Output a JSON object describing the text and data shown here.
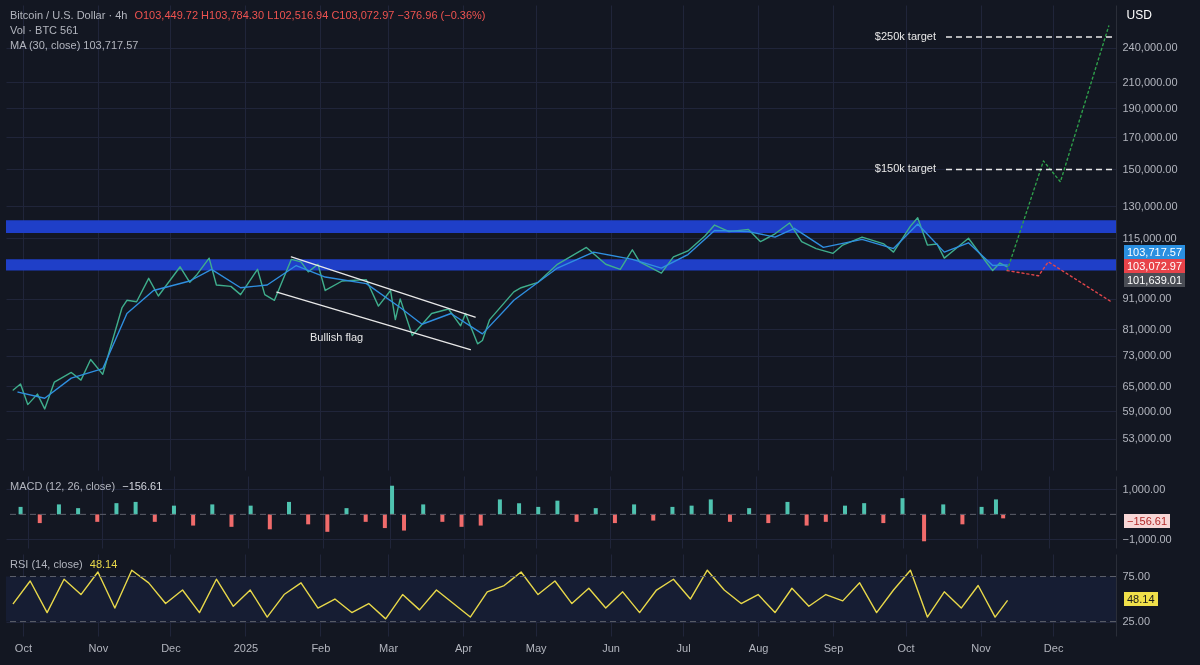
{
  "chart_data": [
    {
      "type": "line",
      "title": "Bitcoin / U.S. Dollar · 4h",
      "subtitle": "O103,449.72 H103,784.30 L102,516.94 C103,072.97 −376.96 (−0.36%)",
      "ylabel": "USD",
      "log": "y",
      "grid": true,
      "tick_labels": "y",
      "xlim": [
        "2024-09-24",
        "2025-12-27"
      ],
      "xticks": [
        {
          "value": "2024-10-01",
          "label": null
        },
        {
          "value": "2024-11-01",
          "label": null
        },
        {
          "value": "2024-12-01",
          "label": null
        },
        {
          "value": "2025-01-01",
          "label": null
        },
        {
          "value": "2025-02-01",
          "label": null
        },
        {
          "value": "2025-03-01",
          "label": null
        },
        {
          "value": "2025-04-01",
          "label": null
        },
        {
          "value": "2025-05-01",
          "label": null
        },
        {
          "value": "2025-06-01",
          "label": null
        },
        {
          "value": "2025-07-01",
          "label": null
        },
        {
          "value": "2025-08-01",
          "label": null
        },
        {
          "value": "2025-09-01",
          "label": null
        },
        {
          "value": "2025-10-01",
          "label": null
        },
        {
          "value": "2025-11-01",
          "label": null
        },
        {
          "value": "2025-12-01",
          "label": null
        }
      ],
      "ylim": [
        47000,
        283000
      ],
      "yticks": [
        {
          "value": 53000,
          "label": "53,000.00"
        },
        {
          "value": 59000,
          "label": "59,000.00"
        },
        {
          "value": 65000,
          "label": "65,000.00"
        },
        {
          "value": 73000,
          "label": "73,000.00"
        },
        {
          "value": 81000,
          "label": "81,000.00"
        },
        {
          "value": 91000,
          "label": "91,000.00"
        },
        {
          "value": 115000,
          "label": "115,000.00"
        },
        {
          "value": 130000,
          "label": "130,000.00"
        },
        {
          "value": 150000,
          "label": "150,000.00"
        },
        {
          "value": 170000,
          "label": "170,000.00"
        },
        {
          "value": 190000,
          "label": "190,000.00"
        },
        {
          "value": 210000,
          "label": "210,000.00"
        },
        {
          "value": 240000,
          "label": "240,000.00"
        }
      ],
      "bands": [
        {
          "axis": "y",
          "from": 101500,
          "to": 106000,
          "color": "#1f3fc8"
        },
        {
          "axis": "y",
          "from": 117300,
          "to": 123300,
          "color": "#1f3fc8"
        }
      ],
      "series": [
        {
          "color": "#3fae8c",
          "x": [
            "2024-09-27",
            "2024-09-30",
            "2024-10-03",
            "2024-10-07",
            "2024-10-10",
            "2024-10-14",
            "2024-10-21",
            "2024-10-25",
            "2024-10-29",
            "2024-11-03",
            "2024-11-06",
            "2024-11-11",
            "2024-11-13",
            "2024-11-17",
            "2024-11-22",
            "2024-11-26",
            "2024-12-05",
            "2024-12-09",
            "2024-12-12",
            "2024-12-17",
            "2024-12-20",
            "2024-12-26",
            "2024-12-30",
            "2025-01-06",
            "2025-01-09",
            "2025-01-13",
            "2025-01-20",
            "2025-01-24",
            "2025-01-27",
            "2025-01-31",
            "2025-02-03",
            "2025-02-10",
            "2025-02-20",
            "2025-02-25",
            "2025-03-02",
            "2025-03-04",
            "2025-03-06",
            "2025-03-11",
            "2025-03-19",
            "2025-03-26",
            "2025-03-31",
            "2025-04-02",
            "2025-04-07",
            "2025-04-09",
            "2025-04-12",
            "2025-04-22",
            "2025-04-25",
            "2025-05-02",
            "2025-05-10",
            "2025-05-22",
            "2025-05-30",
            "2025-06-05",
            "2025-06-10",
            "2025-06-13",
            "2025-06-22",
            "2025-06-27",
            "2025-07-03",
            "2025-07-10",
            "2025-07-14",
            "2025-07-20",
            "2025-07-28",
            "2025-08-02",
            "2025-08-08",
            "2025-08-14",
            "2025-08-19",
            "2025-08-25",
            "2025-09-01",
            "2025-09-05",
            "2025-09-13",
            "2025-09-22",
            "2025-09-26",
            "2025-10-03",
            "2025-10-06",
            "2025-10-10",
            "2025-10-14",
            "2025-10-17",
            "2025-10-27",
            "2025-11-04",
            "2025-11-06",
            "2025-11-09",
            "2025-11-12"
          ],
          "values": [
            64000,
            65500,
            60500,
            63000,
            59500,
            66000,
            68500,
            66500,
            72000,
            68000,
            75000,
            88000,
            90500,
            90000,
            98500,
            92000,
            103000,
            97000,
            100000,
            106500,
            96000,
            95500,
            92500,
            102000,
            92500,
            90500,
            106000,
            105000,
            101000,
            104000,
            94000,
            97500,
            98000,
            88500,
            94000,
            84000,
            91000,
            79000,
            86000,
            87500,
            82000,
            86000,
            76500,
            77500,
            84000,
            93500,
            95000,
            97000,
            104000,
            111000,
            104000,
            102000,
            110000,
            105000,
            100500,
            107000,
            109500,
            116000,
            121000,
            118000,
            119000,
            113500,
            117000,
            122000,
            113500,
            110500,
            108500,
            112000,
            115500,
            112500,
            109000,
            120500,
            124500,
            112000,
            112500,
            106500,
            115000,
            104000,
            101500,
            104500,
            103000
          ]
        },
        {
          "color": "#2f8fe0",
          "x": [
            "2024-09-29",
            "2024-10-10",
            "2024-10-21",
            "2024-11-03",
            "2024-11-13",
            "2024-11-24",
            "2024-12-09",
            "2024-12-18",
            "2024-12-30",
            "2025-01-10",
            "2025-01-22",
            "2025-02-03",
            "2025-02-20",
            "2025-03-06",
            "2025-03-15",
            "2025-03-27",
            "2025-04-09",
            "2025-04-22",
            "2025-05-10",
            "2025-05-25",
            "2025-06-10",
            "2025-06-22",
            "2025-07-03",
            "2025-07-14",
            "2025-07-28",
            "2025-08-08",
            "2025-08-16",
            "2025-08-28",
            "2025-09-13",
            "2025-09-26",
            "2025-10-06",
            "2025-10-17",
            "2025-10-27",
            "2025-11-06",
            "2025-11-12"
          ],
          "values": [
            63500,
            62000,
            67000,
            69500,
            86000,
            94000,
            97500,
            102000,
            95000,
            96000,
            103500,
            99000,
            96500,
            88000,
            82500,
            86000,
            79500,
            90500,
            102500,
            109000,
            106000,
            102500,
            108000,
            118500,
            118000,
            115500,
            119500,
            111000,
            114500,
            110500,
            121500,
            109000,
            113000,
            103500,
            103700
          ]
        },
        {
          "color": "#e8e8e8",
          "x": [
            "2025-01-20",
            "2025-04-06"
          ],
          "values": [
            107000,
            84800
          ]
        },
        {
          "color": "#e8e8e8",
          "x": [
            "2025-01-14",
            "2025-04-04"
          ],
          "values": [
            93400,
            74800
          ]
        },
        {
          "color": "#2e9e4a",
          "line_style": "dotted",
          "x": [
            "2025-11-12",
            "2025-11-27",
            "2025-12-04",
            "2025-12-24"
          ],
          "values": [
            101500,
            155000,
            143000,
            261000
          ]
        },
        {
          "color": "#e0454a",
          "line_style": "dotted",
          "x": [
            "2025-11-12",
            "2025-11-25",
            "2025-11-29",
            "2025-12-25"
          ],
          "values": [
            101500,
            99500,
            105000,
            90000
          ]
        }
      ],
      "ref_lines": [
        {
          "axis": "y",
          "value": 150000,
          "label": "$150k target",
          "line_style": "dashed",
          "color": "#e8e8e8"
        },
        {
          "axis": "y",
          "value": 250000,
          "label": "$250k target",
          "line_style": "dashed",
          "color": "#e8e8e8"
        }
      ],
      "annotations": [
        "Vol · BTC 561",
        "MA (30, close) 103,717.57",
        "Bullish flag",
        "103,717.57",
        "103,072.97",
        "101,639.01"
      ]
    },
    {
      "type": "bar",
      "title": "MACD (12, 26, close)",
      "subtitle": "−156.61",
      "grid": true,
      "tick_labels": "y",
      "xlim": [
        "2024-09-24",
        "2025-12-27"
      ],
      "xticks": [
        {
          "value": "2024-10-01",
          "label": null
        },
        {
          "value": "2024-11-01",
          "label": null
        },
        {
          "value": "2024-12-01",
          "label": null
        },
        {
          "value": "2025-01-01",
          "label": null
        },
        {
          "value": "2025-02-01",
          "label": null
        },
        {
          "value": "2025-03-01",
          "label": null
        },
        {
          "value": "2025-04-01",
          "label": null
        },
        {
          "value": "2025-05-01",
          "label": null
        },
        {
          "value": "2025-06-01",
          "label": null
        },
        {
          "value": "2025-07-01",
          "label": null
        },
        {
          "value": "2025-08-01",
          "label": null
        },
        {
          "value": "2025-09-01",
          "label": null
        },
        {
          "value": "2025-10-01",
          "label": null
        },
        {
          "value": "2025-11-01",
          "label": null
        },
        {
          "value": "2025-12-01",
          "label": null
        }
      ],
      "ylim": [
        -1350,
        1540
      ],
      "yticks": [
        {
          "value": -1000,
          "label": "−1,000.00"
        },
        {
          "value": 1000,
          "label": "1,000.00"
        }
      ],
      "x": [
        "2024-09-28",
        "2024-10-06",
        "2024-10-14",
        "2024-10-22",
        "2024-10-30",
        "2024-11-07",
        "2024-11-15",
        "2024-11-23",
        "2024-12-01",
        "2024-12-09",
        "2024-12-17",
        "2024-12-25",
        "2025-01-02",
        "2025-01-10",
        "2025-01-18",
        "2025-01-26",
        "2025-02-03",
        "2025-02-11",
        "2025-02-19",
        "2025-02-27",
        "2025-03-02",
        "2025-03-07",
        "2025-03-15",
        "2025-03-23",
        "2025-03-31",
        "2025-04-08",
        "2025-04-16",
        "2025-04-24",
        "2025-05-02",
        "2025-05-10",
        "2025-05-18",
        "2025-05-26",
        "2025-06-03",
        "2025-06-11",
        "2025-06-19",
        "2025-06-27",
        "2025-07-05",
        "2025-07-13",
        "2025-07-21",
        "2025-07-29",
        "2025-08-06",
        "2025-08-14",
        "2025-08-22",
        "2025-08-30",
        "2025-09-07",
        "2025-09-15",
        "2025-09-23",
        "2025-10-01",
        "2025-10-10",
        "2025-10-18",
        "2025-10-26",
        "2025-11-03",
        "2025-11-09",
        "2025-11-12"
      ],
      "values": [
        300,
        -350,
        400,
        250,
        -300,
        450,
        500,
        -300,
        350,
        -450,
        400,
        -500,
        350,
        -600,
        500,
        -400,
        -700,
        250,
        -300,
        -550,
        1150,
        -650,
        400,
        -300,
        -500,
        -450,
        600,
        450,
        300,
        550,
        -300,
        250,
        -350,
        400,
        -250,
        300,
        350,
        600,
        -300,
        250,
        -350,
        500,
        -450,
        -300,
        350,
        450,
        -350,
        650,
        -1080,
        400,
        -400,
        300,
        600,
        -160
      ],
      "colors": [
        "#4fc3b0",
        "#f06b6b",
        "#4fc3b0",
        "#4fc3b0",
        "#f06b6b",
        "#4fc3b0",
        "#4fc3b0",
        "#f06b6b",
        "#4fc3b0",
        "#f06b6b",
        "#4fc3b0",
        "#f06b6b",
        "#4fc3b0",
        "#f06b6b",
        "#4fc3b0",
        "#f06b6b",
        "#f06b6b",
        "#4fc3b0",
        "#f06b6b",
        "#f06b6b",
        "#4fc3b0",
        "#f06b6b",
        "#4fc3b0",
        "#f06b6b",
        "#f06b6b",
        "#f06b6b",
        "#4fc3b0",
        "#4fc3b0",
        "#4fc3b0",
        "#4fc3b0",
        "#f06b6b",
        "#4fc3b0",
        "#f06b6b",
        "#4fc3b0",
        "#f06b6b",
        "#4fc3b0",
        "#4fc3b0",
        "#4fc3b0",
        "#f06b6b",
        "#4fc3b0",
        "#f06b6b",
        "#4fc3b0",
        "#f06b6b",
        "#f06b6b",
        "#4fc3b0",
        "#4fc3b0",
        "#f06b6b",
        "#4fc3b0",
        "#f06b6b",
        "#4fc3b0",
        "#f06b6b",
        "#4fc3b0",
        "#4fc3b0",
        "#f06b6b"
      ],
      "ref_lines": [
        {
          "axis": "y",
          "value": 0,
          "line_style": "dashed",
          "color": "#5d606b"
        }
      ],
      "annotations": [
        "−156.61"
      ]
    },
    {
      "type": "line",
      "title": "RSI (14, close)",
      "subtitle": "48.14",
      "grid": true,
      "xlim": [
        "2024-09-24",
        "2025-12-27"
      ],
      "xticks": [
        {
          "value": "2024-10-01",
          "label": "Oct"
        },
        {
          "value": "2024-11-01",
          "label": "Nov"
        },
        {
          "value": "2024-12-01",
          "label": "Dec"
        },
        {
          "value": "2025-01-01",
          "label": "2025"
        },
        {
          "value": "2025-02-01",
          "label": "Feb"
        },
        {
          "value": "2025-03-01",
          "label": "Mar"
        },
        {
          "value": "2025-04-01",
          "label": "Apr"
        },
        {
          "value": "2025-05-01",
          "label": "May"
        },
        {
          "value": "2025-06-01",
          "label": "Jun"
        },
        {
          "value": "2025-07-01",
          "label": "Jul"
        },
        {
          "value": "2025-08-01",
          "label": "Aug"
        },
        {
          "value": "2025-09-01",
          "label": "Sep"
        },
        {
          "value": "2025-10-01",
          "label": "Oct"
        },
        {
          "value": "2025-11-01",
          "label": "Nov"
        },
        {
          "value": "2025-12-01",
          "label": "Dec"
        }
      ],
      "ylim": [
        9,
        100
      ],
      "yticks": [
        {
          "value": 25,
          "label": "25.00"
        },
        {
          "value": 75,
          "label": "75.00"
        }
      ],
      "x": [
        "2024-09-27",
        "2024-10-04",
        "2024-10-11",
        "2024-10-18",
        "2024-10-25",
        "2024-11-01",
        "2024-11-08",
        "2024-11-15",
        "2024-11-22",
        "2024-11-29",
        "2024-12-06",
        "2024-12-13",
        "2024-12-20",
        "2024-12-27",
        "2025-01-03",
        "2025-01-10",
        "2025-01-17",
        "2025-01-24",
        "2025-01-31",
        "2025-02-07",
        "2025-02-14",
        "2025-02-21",
        "2025-02-28",
        "2025-03-07",
        "2025-03-14",
        "2025-03-21",
        "2025-03-28",
        "2025-04-04",
        "2025-04-11",
        "2025-04-18",
        "2025-04-25",
        "2025-05-02",
        "2025-05-09",
        "2025-05-16",
        "2025-05-23",
        "2025-05-30",
        "2025-06-06",
        "2025-06-13",
        "2025-06-20",
        "2025-06-27",
        "2025-07-04",
        "2025-07-11",
        "2025-07-18",
        "2025-07-25",
        "2025-08-01",
        "2025-08-08",
        "2025-08-15",
        "2025-08-22",
        "2025-08-29",
        "2025-09-05",
        "2025-09-12",
        "2025-09-19",
        "2025-09-26",
        "2025-10-03",
        "2025-10-10",
        "2025-10-17",
        "2025-10-24",
        "2025-10-31",
        "2025-11-07",
        "2025-11-12"
      ],
      "series": [
        {
          "color": "#e8d84a",
          "values": [
            45,
            70,
            35,
            72,
            55,
            80,
            40,
            82,
            68,
            45,
            60,
            35,
            72,
            42,
            60,
            30,
            55,
            68,
            40,
            50,
            35,
            45,
            28,
            55,
            38,
            60,
            45,
            30,
            58,
            65,
            80,
            55,
            70,
            45,
            62,
            40,
            58,
            35,
            60,
            72,
            50,
            82,
            60,
            45,
            55,
            35,
            62,
            42,
            55,
            48,
            68,
            35,
            60,
            82,
            30,
            58,
            40,
            65,
            30,
            48
          ]
        }
      ],
      "bands": [
        {
          "axis": "y",
          "from": 25,
          "to": 75,
          "color": "#161d33"
        }
      ],
      "ref_lines": [
        {
          "axis": "y",
          "value": 75,
          "line_style": "dashed",
          "color": "#5d606b"
        },
        {
          "axis": "y",
          "value": 25,
          "line_style": "dashed",
          "color": "#5d606b"
        }
      ],
      "annotations": [
        "48.14"
      ]
    }
  ]
}
